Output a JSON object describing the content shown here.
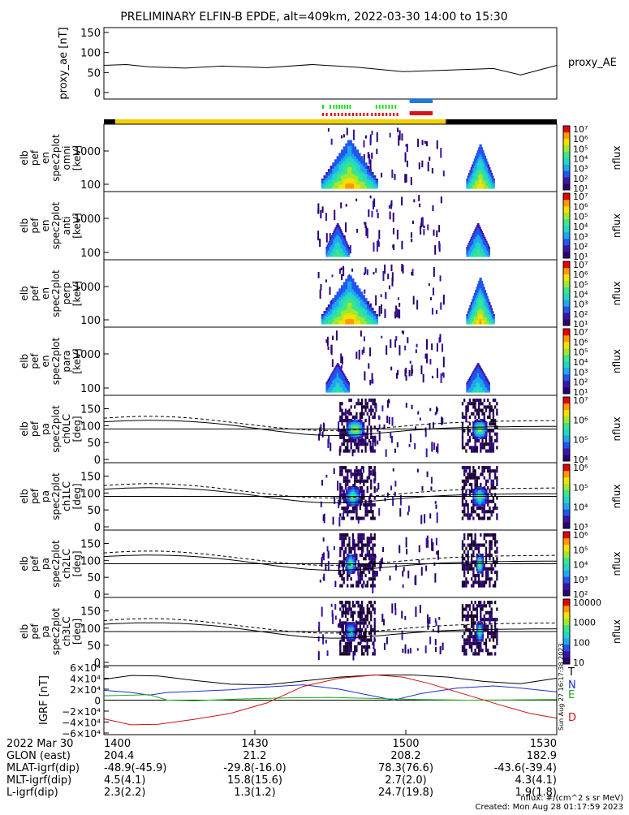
{
  "title": "PRELIMINARY ELFIN-B EPDE, alt=409km, 2022-03-30 14:00 to 15:30",
  "colors": {
    "spec_palette": [
      "#2a0072",
      "#3a14a8",
      "#2255ee",
      "#1fa7f0",
      "#22d6c8",
      "#3ae68c",
      "#a0e830",
      "#f6e000",
      "#ff9a00",
      "#e80000"
    ],
    "science_bar": "#f2d000",
    "no_data_bar": "#000000",
    "green_marks": "#22dd22",
    "red_marks": "#dd1111",
    "blue_bar": "#1e78e8",
    "red_bar": "#dd1111",
    "igrf_T": "#000000",
    "igrf_N": "#1a2fd0",
    "igrf_E": "#18b018",
    "igrf_D": "#cc1111"
  },
  "chart_data": [
    {
      "id": "proxy_ae",
      "type": "line",
      "ylabel": "proxy_ae [nT]",
      "legend": "proxy_AE",
      "ylim": [
        0,
        150
      ],
      "yticks": [
        "0",
        "50",
        "100",
        "150"
      ],
      "x": [
        0,
        5,
        10,
        18,
        26,
        36,
        46,
        56,
        66,
        76,
        86,
        92,
        100
      ],
      "values": [
        68,
        70,
        64,
        61,
        66,
        62,
        70,
        63,
        52,
        56,
        60,
        44,
        68
      ]
    },
    {
      "id": "en-omni",
      "type": "heatmap",
      "ylabel": [
        "elb",
        "pef",
        "en",
        "spec2plot",
        "omni",
        "[keV]"
      ],
      "yscale": "log",
      "yticks": [
        "100",
        "1000"
      ],
      "colorbar": {
        "label": "nflux",
        "scale": "log",
        "ticks": [
          "10¹",
          "10²",
          "10³",
          "10⁴",
          "10⁵",
          "10⁶",
          "10⁷"
        ]
      },
      "ripples": [
        {
          "t0": 0.48,
          "t1": 0.6,
          "peak": 0.9
        },
        {
          "t0": 0.8,
          "t1": 0.86,
          "peak": 0.8
        }
      ]
    },
    {
      "id": "en-anti",
      "type": "heatmap",
      "ylabel": [
        "elb",
        "pef",
        "en",
        "spec2plot",
        "anti",
        "[keV]"
      ],
      "yscale": "log",
      "yticks": [
        "100",
        "1000"
      ],
      "colorbar": {
        "label": "nflux",
        "scale": "log",
        "ticks": [
          "10¹",
          "10²",
          "10³",
          "10⁴",
          "10⁵",
          "10⁶",
          "10⁷"
        ]
      },
      "ripples": [
        {
          "t0": 0.49,
          "t1": 0.54,
          "peak": 0.55
        },
        {
          "t0": 0.8,
          "t1": 0.85,
          "peak": 0.55
        }
      ]
    },
    {
      "id": "en-perp",
      "type": "heatmap",
      "ylabel": [
        "elb",
        "pef",
        "en",
        "spec2plot",
        "perp",
        "[keV]"
      ],
      "yscale": "log",
      "yticks": [
        "100",
        "1000"
      ],
      "colorbar": {
        "label": "nflux",
        "scale": "log",
        "ticks": [
          "10¹",
          "10²",
          "10³",
          "10⁴",
          "10⁵",
          "10⁶",
          "10⁷"
        ]
      },
      "ripples": [
        {
          "t0": 0.48,
          "t1": 0.6,
          "peak": 0.9
        },
        {
          "t0": 0.8,
          "t1": 0.86,
          "peak": 0.85
        }
      ]
    },
    {
      "id": "en-para",
      "type": "heatmap",
      "ylabel": [
        "elb",
        "pef",
        "en",
        "spec2plot",
        "para",
        "[keV]"
      ],
      "yscale": "log",
      "yticks": [
        "100",
        "1000"
      ],
      "colorbar": {
        "label": "nflux",
        "scale": "log",
        "ticks": [
          "10¹",
          "10²",
          "10³",
          "10⁴",
          "10⁵",
          "10⁶",
          "10⁷"
        ]
      },
      "ripples": [
        {
          "t0": 0.49,
          "t1": 0.54,
          "peak": 0.45
        },
        {
          "t0": 0.8,
          "t1": 0.85,
          "peak": 0.45
        }
      ]
    },
    {
      "id": "pa-ch0LC",
      "type": "heatmap",
      "ylabel": [
        "elb",
        "pef",
        "pa",
        "spec2plot",
        "ch0LC",
        "[deg]"
      ],
      "ylim": [
        0,
        180
      ],
      "yticks": [
        "0",
        "50",
        "100",
        "150"
      ],
      "colorbar": {
        "label": "nflux",
        "scale": "log",
        "ticks": [
          "10⁴",
          "10⁵",
          "10⁶",
          "10⁷"
        ]
      },
      "blobs": [
        {
          "t0": 0.53,
          "t1": 0.58,
          "pa": 90,
          "peak": 0.62
        },
        {
          "t0": 0.81,
          "t1": 0.85,
          "pa": 90,
          "peak": 0.6
        }
      ]
    },
    {
      "id": "pa-ch1LC",
      "type": "heatmap",
      "ylabel": [
        "elb",
        "pef",
        "pa",
        "spec2plot",
        "ch1LC",
        "[deg]"
      ],
      "ylim": [
        0,
        180
      ],
      "yticks": [
        "0",
        "50",
        "100",
        "150"
      ],
      "colorbar": {
        "label": "nflux",
        "scale": "log",
        "ticks": [
          "10³",
          "10⁴",
          "10⁵",
          "10⁶"
        ]
      },
      "blobs": [
        {
          "t0": 0.53,
          "t1": 0.57,
          "pa": 90,
          "peak": 0.55
        },
        {
          "t0": 0.81,
          "t1": 0.85,
          "pa": 90,
          "peak": 0.5
        }
      ]
    },
    {
      "id": "pa-ch2LC",
      "type": "heatmap",
      "ylabel": [
        "elb",
        "pef",
        "pa",
        "spec2plot",
        "ch2LC",
        "[deg]"
      ],
      "ylim": [
        0,
        180
      ],
      "yticks": [
        "0",
        "50",
        "100",
        "150"
      ],
      "colorbar": {
        "label": "nflux",
        "scale": "log",
        "ticks": [
          "10²",
          "10³",
          "10⁴",
          "10⁵",
          "10⁶"
        ]
      },
      "blobs": [
        {
          "t0": 0.53,
          "t1": 0.56,
          "pa": 90,
          "peak": 0.55
        },
        {
          "t0": 0.82,
          "t1": 0.84,
          "pa": 90,
          "peak": 0.6
        }
      ]
    },
    {
      "id": "pa-ch3LC",
      "type": "heatmap",
      "ylabel": [
        "elb",
        "pef",
        "pa",
        "spec2plot",
        "ch3LC",
        "[deg]"
      ],
      "ylim": [
        0,
        180
      ],
      "yticks": [
        "0",
        "50",
        "100",
        "150"
      ],
      "colorbar": {
        "label": "nflux",
        "scale": "log",
        "ticks": [
          "10",
          "100",
          "1000",
          "10000"
        ]
      },
      "blobs": [
        {
          "t0": 0.53,
          "t1": 0.56,
          "pa": 90,
          "peak": 0.45
        },
        {
          "t0": 0.82,
          "t1": 0.84,
          "pa": 90,
          "peak": 0.5
        }
      ]
    },
    {
      "id": "igrf",
      "type": "line",
      "ylabel": "IGRF [nT]",
      "ylim": [
        -60000,
        60000
      ],
      "yticks": [
        "6×10⁴",
        "4×10⁴",
        "2×10⁴",
        "0",
        "−2×10⁴",
        "−4×10⁴",
        "−6×10⁴"
      ],
      "series": [
        {
          "name": "T",
          "x": [
            0,
            6,
            12,
            20,
            28,
            36,
            44,
            52,
            60,
            68,
            76,
            84,
            92,
            100
          ],
          "values": [
            38000,
            45000,
            44000,
            36000,
            29000,
            28000,
            35000,
            42000,
            46000,
            46000,
            42000,
            34000,
            30000,
            40000
          ]
        },
        {
          "name": "N",
          "x": [
            0,
            6,
            10,
            14,
            20,
            28,
            36,
            44,
            52,
            58,
            64,
            70,
            78,
            86,
            92,
            100
          ],
          "values": [
            18000,
            14000,
            9000,
            14000,
            16000,
            19000,
            24000,
            28000,
            20000,
            10000,
            0,
            12000,
            22000,
            26000,
            22000,
            15000
          ]
        },
        {
          "name": "E",
          "x": [
            0,
            6,
            10,
            14,
            20,
            30,
            40,
            50,
            60,
            70,
            80,
            90,
            100
          ],
          "values": [
            8000,
            9000,
            10000,
            0,
            -1000,
            2000,
            4000,
            5000,
            3000,
            1000,
            0,
            500,
            1000
          ]
        },
        {
          "name": "D",
          "x": [
            0,
            6,
            12,
            20,
            28,
            36,
            44,
            52,
            60,
            66,
            72,
            80,
            88,
            94,
            100
          ],
          "values": [
            -34000,
            -45000,
            -44000,
            -35000,
            -24000,
            -5000,
            25000,
            40000,
            46000,
            42000,
            30000,
            10000,
            -10000,
            -24000,
            -33000
          ]
        }
      ]
    }
  ],
  "tracks": {
    "green_marks": [
      [
        0.482,
        0.486
      ],
      [
        0.498,
        0.502
      ],
      [
        0.506,
        0.509
      ],
      [
        0.512,
        0.515
      ],
      [
        0.518,
        0.521
      ],
      [
        0.524,
        0.527
      ],
      [
        0.53,
        0.533
      ],
      [
        0.536,
        0.539
      ],
      [
        0.542,
        0.545
      ],
      [
        0.6,
        0.603
      ],
      [
        0.607,
        0.61
      ],
      [
        0.614,
        0.617
      ],
      [
        0.621,
        0.624
      ],
      [
        0.628,
        0.631
      ],
      [
        0.635,
        0.638
      ],
      [
        0.642,
        0.645
      ]
    ],
    "red_marks": [
      [
        0.482,
        0.486
      ],
      [
        0.49,
        0.494
      ],
      [
        0.5,
        0.504
      ],
      [
        0.508,
        0.512
      ],
      [
        0.516,
        0.52
      ],
      [
        0.524,
        0.528
      ],
      [
        0.532,
        0.536
      ],
      [
        0.54,
        0.544
      ],
      [
        0.548,
        0.552
      ],
      [
        0.556,
        0.56
      ],
      [
        0.564,
        0.568
      ],
      [
        0.572,
        0.576
      ],
      [
        0.58,
        0.584
      ],
      [
        0.59,
        0.594
      ],
      [
        0.598,
        0.602
      ],
      [
        0.606,
        0.61
      ],
      [
        0.614,
        0.618
      ],
      [
        0.622,
        0.626
      ],
      [
        0.63,
        0.634
      ],
      [
        0.638,
        0.642
      ],
      [
        0.646,
        0.65
      ]
    ],
    "blue_bar": [
      0.675,
      0.726
    ],
    "red_bar": [
      0.675,
      0.726
    ],
    "science_bar": [
      0.025,
      0.755
    ]
  },
  "xaxis": {
    "ticks": [
      {
        "t": 0.0,
        "label": "1400"
      },
      {
        "t": 0.3333,
        "label": "1430"
      },
      {
        "t": 0.6667,
        "label": "1500"
      },
      {
        "t": 1.0,
        "label": "1530"
      }
    ]
  },
  "ephemeris": {
    "rows": [
      {
        "label": "2022 Mar 30",
        "values": [
          "1400",
          "1430",
          "1500",
          "1530"
        ]
      },
      {
        "label": "GLON (east)",
        "values": [
          "204.4",
          "21.2",
          "208.2",
          "182.9"
        ]
      },
      {
        "label": "MLAT-igrf(dip)",
        "values": [
          "-48.9(-45.9)",
          "-29.8(-16.0)",
          "78.3(76.6)",
          "-43.6(-39.4)"
        ]
      },
      {
        "label": "MLT-igrf(dip)",
        "values": [
          "4.5(4.1)",
          "15.8(15.6)",
          "2.7(2.0)",
          "4.3(4.1)"
        ]
      },
      {
        "label": "L-igrf(dip)",
        "values": [
          "2.3(2.2)",
          "1.3(1.2)",
          "24.7(19.8)",
          "1.9(1.8)"
        ]
      }
    ]
  },
  "footer": {
    "units": "nflux: #/(cm^2 s sr MeV)",
    "created": "Created: Mon Aug 28 01:17:59 2023",
    "side_stamp": "Sun Aug 27 16:17:38 2023"
  }
}
